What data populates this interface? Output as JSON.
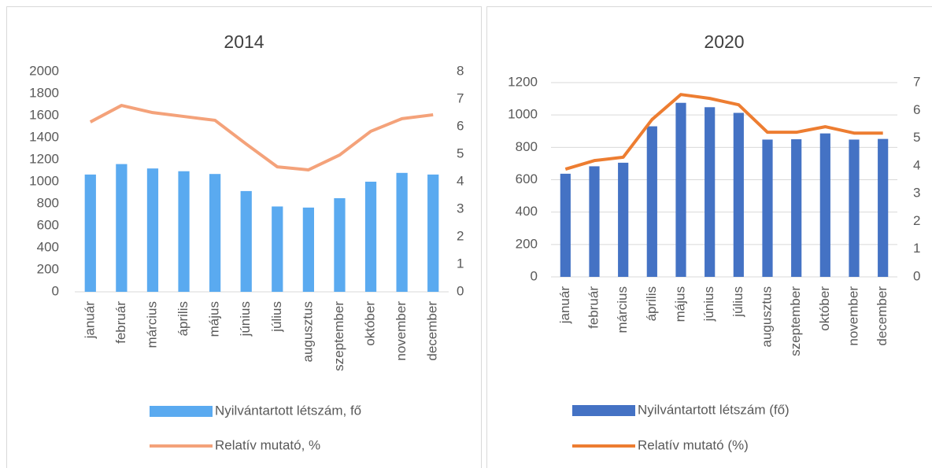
{
  "chart_data": [
    {
      "type": "bar",
      "title": "2014",
      "categories": [
        "január",
        "február",
        "március",
        "április",
        "május",
        "június",
        "július",
        "augusztus",
        "szeptember",
        "október",
        "november",
        "december"
      ],
      "series": [
        {
          "name": "Nyilvántartott létszám, fő",
          "type": "bar",
          "color": "#5aaaf0",
          "values": [
            1065,
            1160,
            1120,
            1095,
            1070,
            915,
            775,
            765,
            850,
            1000,
            1080,
            1065
          ]
        },
        {
          "name": "Relatív mutató, %",
          "type": "line",
          "axis": "y2",
          "color": "#f4a27a",
          "values": [
            6.17,
            6.77,
            6.51,
            6.37,
            6.23,
            5.37,
            4.54,
            4.43,
            4.97,
            5.83,
            6.29,
            6.43
          ]
        }
      ],
      "ylim": [
        0,
        2000
      ],
      "yticks": [
        0,
        200,
        400,
        600,
        800,
        1000,
        1200,
        1400,
        1600,
        1800,
        2000
      ],
      "y2lim": [
        0,
        8
      ],
      "y2ticks": [
        0,
        1,
        2,
        3,
        4,
        5,
        6,
        7,
        8
      ],
      "grid": false,
      "legend": "bottom"
    },
    {
      "type": "bar",
      "title": "2020",
      "categories": [
        "január",
        "február",
        "március",
        "április",
        "május",
        "június",
        "július",
        "augusztus",
        "szeptember",
        "október",
        "november",
        "december"
      ],
      "series": [
        {
          "name": "Nyilvántartott létszám (fő)",
          "type": "bar",
          "color": "#4472c4",
          "values": [
            637,
            683,
            705,
            930,
            1075,
            1048,
            1013,
            848,
            850,
            886,
            848,
            852
          ]
        },
        {
          "name": "Relatív mutató (%)",
          "type": "line",
          "axis": "y2",
          "color": "#ed7d31",
          "values": [
            3.88,
            4.19,
            4.31,
            5.67,
            6.57,
            6.43,
            6.2,
            5.21,
            5.21,
            5.41,
            5.18,
            5.18
          ]
        }
      ],
      "ylim": [
        0,
        1200
      ],
      "yticks": [
        0,
        200,
        400,
        600,
        800,
        1000,
        1200
      ],
      "y2lim": [
        0,
        7
      ],
      "y2ticks": [
        0,
        1,
        2,
        3,
        4,
        5,
        6,
        7
      ],
      "grid": true,
      "legend": "bottom"
    }
  ]
}
